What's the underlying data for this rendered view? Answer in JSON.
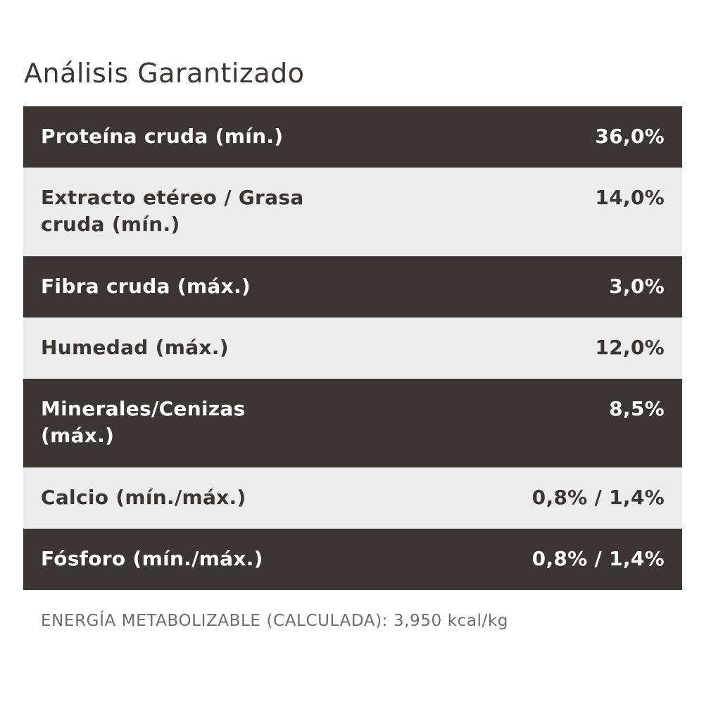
{
  "title": "Análisis Garantizado",
  "colors": {
    "dark_row": "#3b3634",
    "light_row": "#ececec",
    "dark_text": "#3b3634",
    "light_text": "#ffffff"
  },
  "rows": [
    {
      "label": "Proteína cruda (mín.)",
      "value": "36,0%"
    },
    {
      "label": "Extracto etéreo / Grasa cruda (mín.)",
      "value": "14,0%"
    },
    {
      "label": "Fibra cruda (máx.)",
      "value": "3,0%"
    },
    {
      "label": "Humedad (máx.)",
      "value": "12,0%"
    },
    {
      "label": "Minerales/Cenizas (máx.)",
      "value": "8,5%"
    },
    {
      "label": "Calcio (mín./máx.)",
      "value": "0,8% / 1,4%"
    },
    {
      "label": "Fósforo (mín./máx.)",
      "value": "0,8% / 1,4%"
    }
  ],
  "footnote": "ENERGÍA METABOLIZABLE (CALCULADA): 3,950 kcal/kg"
}
